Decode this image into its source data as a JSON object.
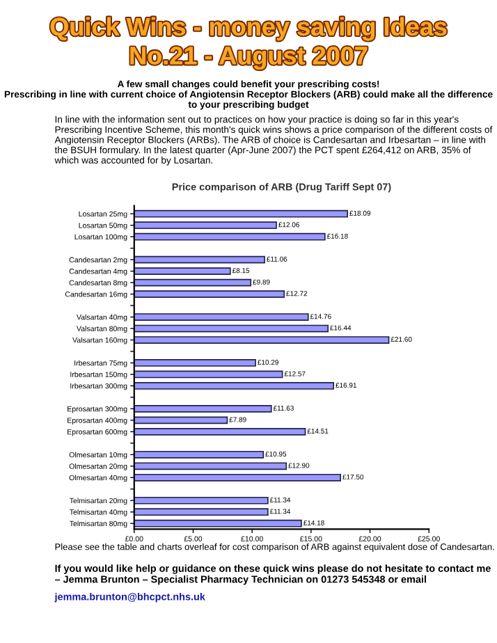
{
  "chart_data": {
    "type": "bar",
    "orientation": "horizontal",
    "title": "Price comparison of ARB (Drug Tariff Sept 07)",
    "categories": [
      "Losartan 25mg",
      "Losartan 50mg",
      "Losartan 100mg",
      null,
      "Candesartan 2mg",
      "Candesartan 4mg",
      "Candesartan 8mg",
      "Candesartan 16mg",
      null,
      "Valsartan 40mg",
      "Valsartan 80mg",
      "Valsartan 160mg",
      null,
      "Irbesartan 75mg",
      "Irbesartan 150mg",
      "Irbesartan 300mg",
      null,
      "Eprosartan 300mg",
      "Eprosartan 400mg",
      "Eprosartan 600mg",
      null,
      "Olmesartan 10mg",
      "Olmesartan 20mg",
      "Olmesartan 40mg",
      null,
      "Telmisartan 20mg",
      "Telmisartan 40mg",
      "Telmisartan 80mg"
    ],
    "values": [
      18.09,
      12.06,
      16.18,
      null,
      11.06,
      8.15,
      9.89,
      12.72,
      null,
      14.76,
      16.44,
      21.6,
      null,
      10.29,
      12.57,
      16.91,
      null,
      11.63,
      7.89,
      14.51,
      null,
      10.95,
      12.9,
      17.5,
      null,
      11.34,
      11.34,
      14.18
    ],
    "value_labels": [
      "£18.09",
      "£12.06",
      "£16.18",
      null,
      "£11.06",
      "£8.15",
      "£9.89",
      "£12.72",
      null,
      "£14.76",
      "£16.44",
      "£21.60",
      null,
      "£10.29",
      "£12.57",
      "£16.91",
      null,
      "£11.63",
      "£7.89",
      "£14.51",
      null,
      "£10.95",
      "£12.90",
      "£17.50",
      null,
      "£11.34",
      "£11.34",
      "£14.18"
    ],
    "color": "#9999ff",
    "xlim": [
      0,
      25
    ],
    "xticks": [
      {
        "value": 0,
        "label": "£0.00"
      },
      {
        "value": 5,
        "label": "£5.00"
      },
      {
        "value": 10,
        "label": "£10.00"
      },
      {
        "value": 15,
        "label": "£15.00"
      },
      {
        "value": 20,
        "label": "£20.00"
      },
      {
        "value": 25,
        "label": "£25.00"
      }
    ],
    "grid": false,
    "legend": false,
    "annotations": [
      "Quick Wins - money saving Ideas",
      "No.21 - August 2007",
      "A few small changes could benefit your prescribing costs!\nPrescribing in line with current choice of Angiotensin Receptor Blockers (ARB) could make all the difference to your prescribing budget",
      "In line with the information sent out to practices on how your practice is doing so far in this year's Prescribing Incentive Scheme, this month's quick wins shows a price comparison of the different costs of Angiotensin Receptor Blockers (ARBs). The ARB of choice is Candesartan and Irbesartan – in line with the BSUH formulary. In the latest quarter (Apr-June 2007) the PCT spent £264,412 on ARB, 35% of which was accounted for by Losartan.",
      "Please see the table and charts overleaf for cost comparison of ARB against equivalent dose of Candesartan.",
      "If you would like help or guidance on these quick wins please do not hesitate to contact me – Jemma Brunton – Specialist Pharmacy Technician on 01273 545348 or email",
      "jemma.brunton@bhcpct.nhs.uk"
    ]
  }
}
